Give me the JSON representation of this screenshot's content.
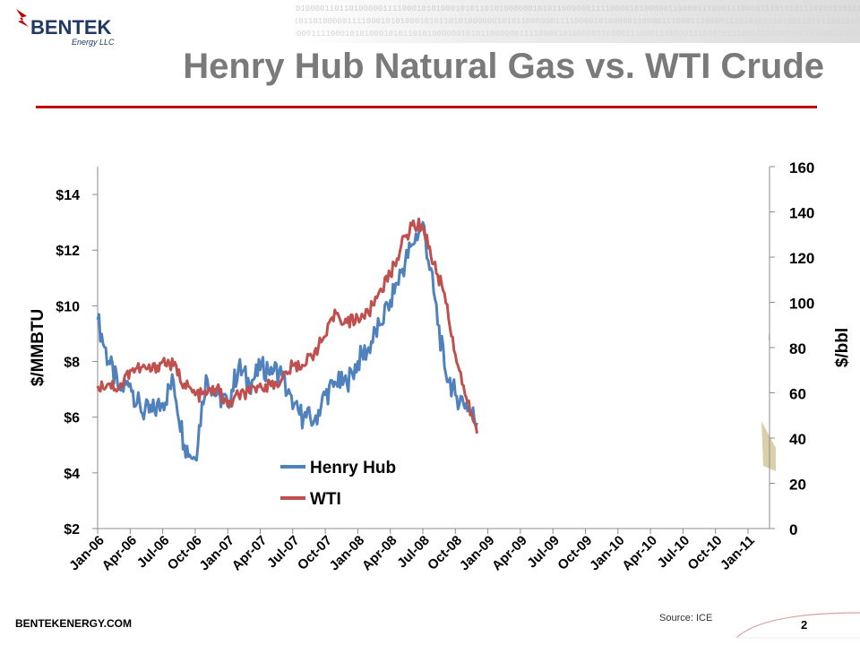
{
  "branding": {
    "logo_word": "BENTEK",
    "logo_sub": "Energy LLC",
    "website": "BENTEKENERGY.COM",
    "binary_text": "0100001101101000001111000101010001010110101000000101011000000111100001010000011000011100011100001110101011101001101011001110001011011001111100111011000010100"
  },
  "slide": {
    "title": "Henry Hub Natural Gas vs. WTI Crude",
    "source": "Source: ICE",
    "page_number": "2"
  },
  "colors": {
    "henry_hub": "#4f81bd",
    "wti": "#c0504d",
    "title_rule": "#c00000",
    "title_text": "#7a7a7a",
    "accent_tan": "#d9cfa9"
  },
  "chart_data": {
    "type": "line",
    "title": "",
    "ylabel_left": "$/MMBTU",
    "ylabel_right": "$/bbl",
    "xlabel": "",
    "x_ticks": [
      "Jan-06",
      "Apr-06",
      "Jul-06",
      "Oct-06",
      "Jan-07",
      "Apr-07",
      "Jul-07",
      "Oct-07",
      "Jan-08",
      "Apr-08",
      "Jul-08",
      "Oct-08",
      "Jan-09",
      "Apr-09",
      "Jul-09",
      "Oct-09",
      "Jan-10",
      "Apr-10",
      "Jul-10",
      "Oct-10",
      "Jan-11"
    ],
    "x_range": [
      "Jan-06",
      "Apr-11"
    ],
    "y_left": {
      "range": [
        2,
        15
      ],
      "ticks": [
        2,
        4,
        6,
        8,
        10,
        12,
        14
      ],
      "tick_labels": [
        "$2",
        "$4",
        "$6",
        "$8",
        "$10",
        "$12",
        "$14"
      ]
    },
    "y_right": {
      "range": [
        0,
        160
      ],
      "ticks": [
        0,
        20,
        40,
        60,
        80,
        100,
        120,
        140,
        160
      ],
      "tick_labels": [
        "0",
        "20",
        "40",
        "60",
        "80",
        "100",
        "120",
        "140",
        "160"
      ]
    },
    "grid": false,
    "legend": {
      "position": "inside-bottom-center",
      "entries": [
        "Henry Hub",
        "WTI"
      ]
    },
    "series": [
      {
        "name": "Henry Hub",
        "axis": "left",
        "unit": "$/MMBTU",
        "x": [
          "Jan-06",
          "Feb-06",
          "Mar-06",
          "Apr-06",
          "May-06",
          "Jun-06",
          "Jul-06",
          "Aug-06",
          "Sep-06",
          "Oct-06",
          "Nov-06",
          "Dec-06",
          "Jan-07",
          "Feb-07",
          "Mar-07",
          "Apr-07",
          "May-07",
          "Jun-07",
          "Jul-07",
          "Aug-07",
          "Sep-07",
          "Oct-07",
          "Nov-07",
          "Dec-07",
          "Jan-08",
          "Feb-08",
          "Mar-08",
          "Apr-08",
          "May-08",
          "Jun-08",
          "Jul-08",
          "Aug-08",
          "Sep-08",
          "Oct-08",
          "Nov-08",
          "Dec-08"
        ],
        "values": [
          9.5,
          8.0,
          7.0,
          7.2,
          6.2,
          6.2,
          6.5,
          7.3,
          5.0,
          4.5,
          7.5,
          6.8,
          6.5,
          7.8,
          7.2,
          7.7,
          7.8,
          7.5,
          6.3,
          6.0,
          5.9,
          6.8,
          7.2,
          7.2,
          8.0,
          8.5,
          9.3,
          10.2,
          11.2,
          12.2,
          13.0,
          10.5,
          7.8,
          6.8,
          6.5,
          5.8
        ]
      },
      {
        "name": "WTI",
        "axis": "right",
        "unit": "$/bbl",
        "x": [
          "Jan-06",
          "Feb-06",
          "Mar-06",
          "Apr-06",
          "May-06",
          "Jun-06",
          "Jul-06",
          "Aug-06",
          "Sep-06",
          "Oct-06",
          "Nov-06",
          "Dec-06",
          "Jan-07",
          "Feb-07",
          "Mar-07",
          "Apr-07",
          "May-07",
          "Jun-07",
          "Jul-07",
          "Aug-07",
          "Sep-07",
          "Oct-07",
          "Nov-07",
          "Dec-07",
          "Jan-08",
          "Feb-08",
          "Mar-08",
          "Apr-08",
          "May-08",
          "Jun-08",
          "Jul-08",
          "Aug-08",
          "Sep-08",
          "Oct-08",
          "Nov-08",
          "Dec-08"
        ],
        "values": [
          63,
          64,
          62,
          70,
          71,
          70,
          74,
          72,
          64,
          59,
          59,
          62,
          54,
          59,
          60,
          64,
          63,
          66,
          72,
          72,
          78,
          85,
          95,
          91,
          93,
          95,
          105,
          112,
          125,
          134,
          134,
          117,
          104,
          77,
          58,
          42
        ]
      }
    ]
  }
}
